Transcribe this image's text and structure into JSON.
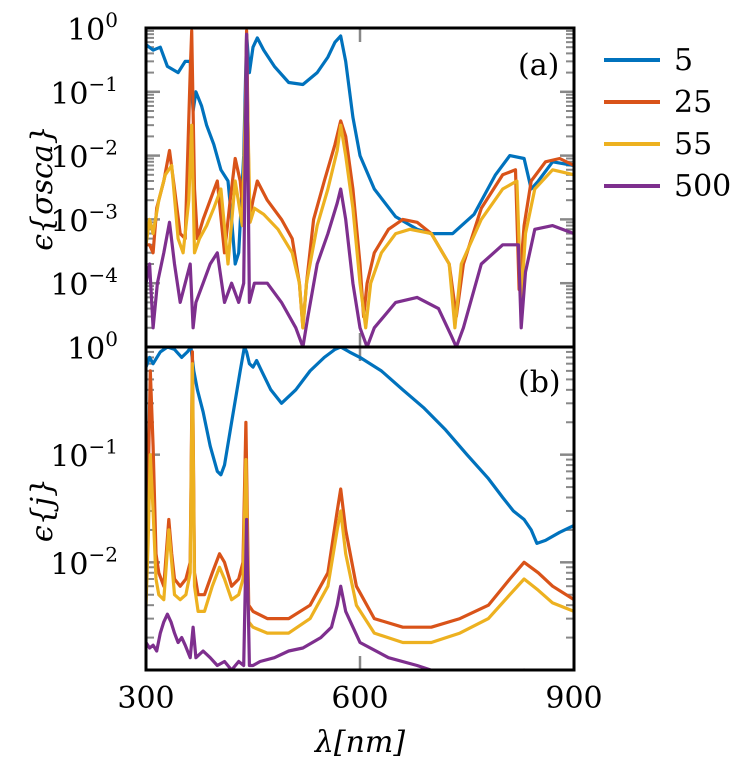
{
  "chart_data": {
    "type": "line",
    "legend": {
      "placement": "top-right-outside"
    },
    "colors": [
      "#0072BD",
      "#D95319",
      "#EDB120",
      "#7E2F8E"
    ],
    "x_tick_labels": [
      "300",
      "600",
      "900"
    ],
    "xlabel": "λ[nm]",
    "xlim": [
      300,
      900
    ],
    "panels": [
      {
        "name": "(a)",
        "ylabel": "ϵ{σ_sca}",
        "ylabel_display": "ϵ{σsca}",
        "yscale": "log",
        "ylim": [
          1e-05,
          1
        ],
        "yticks": [
          1,
          0.1,
          0.01,
          0.001,
          0.0001
        ],
        "ytick_labels": [
          {
            "base": "10",
            "exp": "0"
          },
          {
            "base": "10",
            "exp": "−1"
          },
          {
            "base": "10",
            "exp": "−2"
          },
          {
            "base": "10",
            "exp": "−3"
          },
          {
            "base": "10",
            "exp": "−4"
          }
        ],
        "series": [
          {
            "name": "5",
            "x": [
              300,
              310,
              320,
              330,
              345,
              355,
              362,
              366,
              370,
              378,
              385,
              395,
              405,
              415,
              420,
              425,
              430,
              437,
              441,
              445,
              450,
              456,
              465,
              480,
              500,
              520,
              540,
              555,
              565,
              573,
              580,
              590,
              600,
              620,
              650,
              680,
              700,
              730,
              760,
              790,
              810,
              830,
              840,
              850,
              870,
              900
            ],
            "y": [
              0.55,
              0.45,
              0.5,
              0.25,
              0.2,
              0.3,
              0.3,
              0.05,
              0.1,
              0.06,
              0.03,
              0.015,
              0.006,
              0.004,
              0.001,
              0.0002,
              0.0003,
              0.01,
              0.8,
              0.2,
              0.5,
              0.7,
              0.45,
              0.25,
              0.14,
              0.13,
              0.2,
              0.35,
              0.6,
              0.75,
              0.3,
              0.04,
              0.01,
              0.003,
              0.0011,
              0.0007,
              0.0006,
              0.0006,
              0.0012,
              0.005,
              0.01,
              0.009,
              0.003,
              0.004,
              0.008,
              0.007
            ]
          },
          {
            "name": "25",
            "x": [
              300,
              305,
              310,
              315,
              325,
              333,
              340,
              348,
              355,
              362,
              364,
              368,
              372,
              380,
              390,
              400,
              410,
              418,
              425,
              432,
              437,
              441,
              445,
              450,
              456,
              470,
              490,
              505,
              515,
              520,
              525,
              535,
              550,
              565,
              573,
              580,
              590,
              600,
              605,
              610,
              620,
              640,
              660,
              680,
              700,
              725,
              735,
              745,
              770,
              800,
              818,
              823,
              830,
              840,
              860,
              880,
              900
            ],
            "y": [
              0.0004,
              0.0004,
              0.0003,
              0.0015,
              0.004,
              0.012,
              0.003,
              0.0006,
              0.0005,
              0.2,
              0.9,
              0.003,
              0.0005,
              0.001,
              0.002,
              0.004,
              0.0003,
              0.002,
              0.009,
              0.004,
              0.001,
              0.9,
              0.001,
              0.002,
              0.004,
              0.002,
              0.001,
              0.0005,
              0.0001,
              2e-05,
              0.0001,
              0.001,
              0.004,
              0.015,
              0.035,
              0.02,
              0.003,
              0.0002,
              3e-05,
              0.0001,
              0.0003,
              0.0007,
              0.001,
              0.0009,
              0.0006,
              0.0002,
              3e-05,
              0.0002,
              0.0015,
              0.005,
              0.006,
              8e-05,
              0.0008,
              0.004,
              0.008,
              0.009,
              0.007
            ]
          },
          {
            "name": "55",
            "x": [
              300,
              305,
              310,
              318,
              327,
              336,
              345,
              352,
              360,
              364,
              368,
              375,
              385,
              395,
              405,
              415,
              425,
              435,
              441,
              446,
              452,
              465,
              485,
              505,
              515,
              520,
              525,
              540,
              555,
              568,
              573,
              580,
              590,
              600,
              608,
              615,
              630,
              650,
              670,
              700,
              725,
              733,
              742,
              770,
              800,
              820,
              826,
              832,
              845,
              870,
              900
            ],
            "y": [
              0.0004,
              0.001,
              0.0006,
              0.002,
              0.005,
              0.007,
              0.0005,
              0.0003,
              0.002,
              0.03,
              0.0003,
              0.0005,
              0.0008,
              0.0015,
              0.003,
              0.0002,
              0.004,
              0.0008,
              0.3,
              0.0009,
              0.0015,
              0.0012,
              0.0007,
              0.0003,
              0.0001,
              2e-05,
              0.0001,
              0.0008,
              0.003,
              0.012,
              0.03,
              0.01,
              0.0015,
              0.0001,
              2e-05,
              0.0001,
              0.0003,
              0.0006,
              0.0007,
              0.0006,
              0.0002,
              2e-05,
              0.0002,
              0.001,
              0.003,
              0.004,
              5e-05,
              0.0006,
              0.003,
              0.006,
              0.005
            ]
          },
          {
            "name": "500",
            "x": [
              300,
              305,
              310,
              316,
              325,
              333,
              340,
              348,
              355,
              362,
              366,
              370,
              380,
              390,
              400,
              410,
              420,
              430,
              437,
              441,
              445,
              452,
              470,
              490,
              510,
              520,
              527,
              540,
              555,
              568,
              573,
              580,
              590,
              600,
              610,
              620,
              650,
              680,
              710,
              728,
              735,
              745,
              770,
              800,
              822,
              826,
              832,
              845,
              870,
              900
            ],
            "y": [
              0.0001,
              0.0002,
              2e-05,
              0.0001,
              0.0003,
              0.0009,
              0.0002,
              5e-05,
              0.0001,
              0.0002,
              2e-05,
              5e-05,
              0.0001,
              0.0002,
              0.0003,
              5e-05,
              0.0001,
              5e-05,
              0.0001,
              0.8,
              5e-05,
              0.0001,
              0.0001,
              5e-05,
              2e-05,
              1e-05,
              3e-05,
              0.0002,
              0.0006,
              0.0018,
              0.003,
              0.001,
              0.0001,
              2e-05,
              1e-05,
              2e-05,
              5e-05,
              6e-05,
              4e-05,
              1.5e-05,
              1e-05,
              2e-05,
              0.0002,
              0.0004,
              0.0004,
              2e-05,
              0.00015,
              0.0007,
              0.0008,
              0.0006
            ]
          }
        ]
      },
      {
        "name": "(b)",
        "ylabel": "ϵ{j}",
        "ylabel_display": "ϵ{j}",
        "yscale": "log",
        "ylim": [
          0.001,
          1
        ],
        "yticks": [
          0.1,
          0.01
        ],
        "ytick_labels": [
          {
            "base": "10",
            "exp": "0"
          },
          {
            "base": "10",
            "exp": "−1"
          },
          {
            "base": "10",
            "exp": "−2"
          }
        ],
        "ytick_label_values": [
          1,
          0.1,
          0.01
        ],
        "series": [
          {
            "name": "5",
            "x": [
              300,
              305,
              310,
              320,
              330,
              340,
              350,
              358,
              363,
              367,
              372,
              380,
              390,
              400,
              405,
              410,
              420,
              432,
              438,
              441,
              445,
              450,
              455,
              462,
              475,
              490,
              510,
              530,
              550,
              565,
              573,
              585,
              600,
              630,
              660,
              690,
              720,
              750,
              780,
              800,
              815,
              830,
              840,
              848,
              860,
              880,
              900
            ],
            "y": [
              0.65,
              0.8,
              0.7,
              0.9,
              1.0,
              0.95,
              0.8,
              0.9,
              1.0,
              0.6,
              0.4,
              0.25,
              0.12,
              0.07,
              0.065,
              0.08,
              0.2,
              0.6,
              1.0,
              0.9,
              0.7,
              0.65,
              0.75,
              0.6,
              0.4,
              0.3,
              0.4,
              0.6,
              0.8,
              0.95,
              1.0,
              0.9,
              0.8,
              0.6,
              0.4,
              0.27,
              0.17,
              0.1,
              0.06,
              0.04,
              0.03,
              0.025,
              0.02,
              0.015,
              0.016,
              0.019,
              0.022
            ]
          },
          {
            "name": "25",
            "x": [
              300,
              303,
              306,
              310,
              314,
              318,
              325,
              332,
              336,
              340,
              348,
              356,
              362,
              365,
              368,
              373,
              382,
              393,
              403,
              410,
              420,
              430,
              436,
              440,
              444,
              450,
              470,
              500,
              530,
              555,
              568,
              573,
              580,
              595,
              620,
              660,
              700,
              740,
              780,
              810,
              830,
              850,
              870,
              900
            ],
            "y": [
              0.006,
              0.05,
              0.6,
              0.12,
              0.012,
              0.008,
              0.006,
              0.025,
              0.012,
              0.007,
              0.006,
              0.007,
              0.01,
              0.9,
              0.008,
              0.005,
              0.005,
              0.008,
              0.012,
              0.01,
              0.006,
              0.007,
              0.01,
              0.2,
              0.004,
              0.0035,
              0.003,
              0.003,
              0.004,
              0.008,
              0.03,
              0.048,
              0.02,
              0.006,
              0.003,
              0.0025,
              0.0025,
              0.003,
              0.004,
              0.007,
              0.01,
              0.008,
              0.006,
              0.0045
            ]
          },
          {
            "name": "55",
            "x": [
              300,
              303,
              306,
              310,
              314,
              318,
              325,
              332,
              336,
              340,
              348,
              356,
              362,
              365,
              368,
              373,
              382,
              393,
              403,
              410,
              420,
              430,
              436,
              440,
              444,
              450,
              470,
              500,
              530,
              555,
              568,
              573,
              580,
              595,
              620,
              660,
              700,
              740,
              780,
              810,
              830,
              850,
              870,
              900
            ],
            "y": [
              0.004,
              0.015,
              0.1,
              0.03,
              0.007,
              0.005,
              0.0045,
              0.02,
              0.01,
              0.005,
              0.0045,
              0.005,
              0.008,
              0.7,
              0.006,
              0.0035,
              0.0035,
              0.006,
              0.009,
              0.007,
              0.0045,
              0.005,
              0.007,
              0.09,
              0.0028,
              0.0025,
              0.0022,
              0.0022,
              0.003,
              0.006,
              0.02,
              0.03,
              0.012,
              0.004,
              0.0022,
              0.0018,
              0.0018,
              0.0022,
              0.003,
              0.005,
              0.007,
              0.0055,
              0.0042,
              0.0035
            ]
          },
          {
            "name": "500",
            "x": [
              300,
              305,
              310,
              315,
              320,
              325,
              330,
              335,
              340,
              345,
              350,
              355,
              362,
              366,
              370,
              380,
              390,
              400,
              410,
              420,
              430,
              437,
              441,
              445,
              450,
              460,
              480,
              500,
              520,
              545,
              560,
              568,
              573,
              580,
              600,
              640,
              680,
              720,
              760,
              800,
              830,
              850,
              870,
              900
            ],
            "y": [
              0.0018,
              0.0016,
              0.0017,
              0.0015,
              0.0022,
              0.0028,
              0.0033,
              0.0028,
              0.0022,
              0.0018,
              0.002,
              0.0017,
              0.0013,
              0.0025,
              0.0013,
              0.0015,
              0.0013,
              0.0011,
              0.0012,
              0.001,
              0.0012,
              0.0011,
              0.025,
              0.0011,
              0.0011,
              0.0012,
              0.0013,
              0.0015,
              0.0016,
              0.002,
              0.0025,
              0.004,
              0.006,
              0.0035,
              0.0018,
              0.0013,
              0.0011,
              0.0009,
              0.0008,
              0.0008,
              0.001,
              0.0009,
              0.0008,
              0.0008
            ]
          }
        ]
      }
    ]
  }
}
